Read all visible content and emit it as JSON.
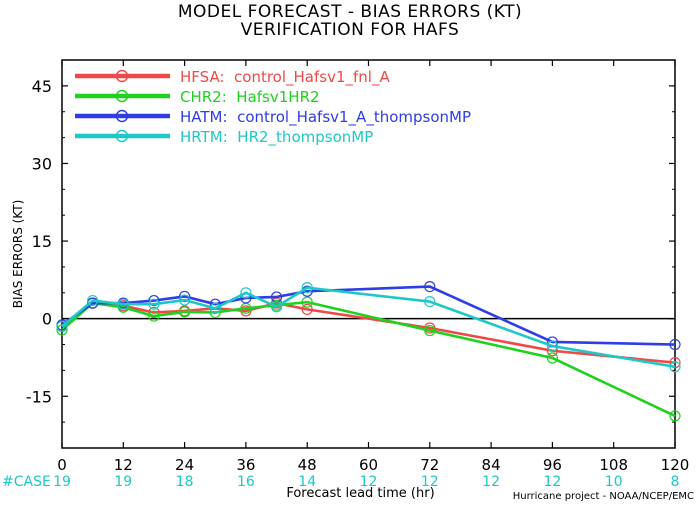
{
  "chart_data": {
    "type": "line",
    "title": "MODEL FORECAST - BIAS ERRORS (KT)",
    "subtitle": "VERIFICATION FOR HAFS",
    "xlabel": "Forecast lead time (hr)",
    "ylabel": "BIAS ERRORS (KT)",
    "xlim": [
      0,
      120
    ],
    "ylim": [
      -25,
      50
    ],
    "xticks": [
      "0",
      "12",
      "24",
      "36",
      "48",
      "60",
      "72",
      "84",
      "96",
      "108",
      "120"
    ],
    "yticks": [
      "-15",
      "0",
      "15",
      "30",
      "45"
    ],
    "case_label": "#CASE",
    "cases": [
      {
        "x": 0,
        "n": "19"
      },
      {
        "x": 12,
        "n": "19"
      },
      {
        "x": 24,
        "n": "18"
      },
      {
        "x": 36,
        "n": "16"
      },
      {
        "x": 48,
        "n": "14"
      },
      {
        "x": 60,
        "n": "12"
      },
      {
        "x": 72,
        "n": "12"
      },
      {
        "x": 84,
        "n": "12"
      },
      {
        "x": 96,
        "n": "12"
      },
      {
        "x": 108,
        "n": "10"
      },
      {
        "x": 120,
        "n": "8"
      }
    ],
    "series": [
      {
        "id": "HFSA",
        "name": "HFSA:  control_Hafsv1_fnl_A",
        "color": "#f04848",
        "x": [
          0,
          6,
          12,
          18,
          24,
          30,
          36,
          42,
          48,
          72,
          96,
          120
        ],
        "y": [
          -1.5,
          3.0,
          2.5,
          1.2,
          1.5,
          2.0,
          1.5,
          3.0,
          1.8,
          -1.8,
          -6.2,
          -8.5
        ]
      },
      {
        "id": "CHR2",
        "name": "CHR2:  Hafsv1HR2",
        "color": "#1ed21e",
        "x": [
          0,
          6,
          12,
          18,
          24,
          30,
          36,
          42,
          48,
          72,
          96,
          120
        ],
        "y": [
          -2.2,
          3.0,
          2.2,
          0.5,
          1.3,
          1.2,
          2.0,
          2.6,
          3.2,
          -2.3,
          -7.6,
          -18.8
        ]
      },
      {
        "id": "HATM",
        "name": "HATM:  control_Hafsv1_A_thompsonMP",
        "color": "#2e3de6",
        "x": [
          0,
          6,
          12,
          18,
          24,
          30,
          36,
          42,
          48,
          72,
          96,
          120
        ],
        "y": [
          -1.2,
          3.0,
          3.0,
          3.5,
          4.3,
          2.8,
          4.0,
          4.2,
          5.3,
          6.2,
          -4.5,
          -5.0
        ]
      },
      {
        "id": "HRTM",
        "name": "HRTM:  HR2_thompsonMP",
        "color": "#1ec8c8",
        "x": [
          0,
          6,
          12,
          18,
          24,
          30,
          36,
          42,
          48,
          72,
          96,
          120
        ],
        "y": [
          -1.5,
          3.5,
          2.8,
          2.8,
          3.6,
          2.0,
          5.0,
          2.3,
          6.0,
          3.3,
          -5.3,
          -9.3
        ]
      }
    ],
    "legend_position": "top-left",
    "grid": false
  },
  "credit": "Hurricane project - NOAA/NCEP/EMC"
}
